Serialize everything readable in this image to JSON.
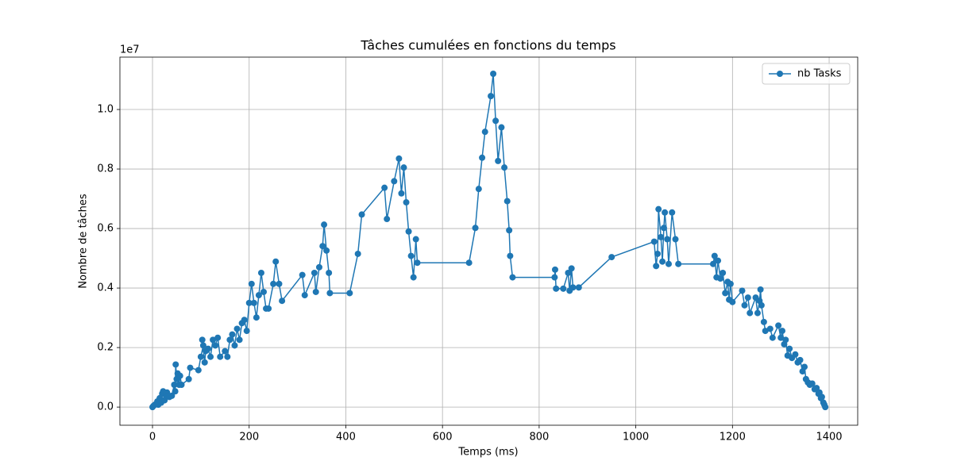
{
  "chart_data": {
    "type": "line",
    "title": "Tâches cumulées en fonctions du temps",
    "x_label": "Temps (ms)",
    "y_label": "Nombre de tâches",
    "y_offset_label": "1e7",
    "x": [
      0,
      2,
      5,
      8,
      10,
      12,
      15,
      18,
      20,
      22,
      25,
      28,
      30,
      33,
      35,
      40,
      45,
      47,
      48,
      50,
      52,
      55,
      57,
      60,
      75,
      78,
      95,
      100,
      105,
      103,
      108,
      110,
      115,
      120,
      125,
      130,
      135,
      140,
      150,
      155,
      160,
      165,
      170,
      175,
      180,
      185,
      190,
      195,
      200,
      205,
      210,
      215,
      220,
      225,
      230,
      235,
      240,
      250,
      255,
      262,
      268,
      310,
      315,
      335,
      338,
      345,
      352,
      355,
      360,
      365,
      367,
      408,
      425,
      433,
      480,
      485,
      500,
      510,
      515,
      520,
      525,
      530,
      535,
      540,
      545,
      548,
      655,
      668,
      675,
      682,
      688,
      700,
      705,
      710,
      715,
      722,
      728,
      734,
      738,
      740,
      745,
      832,
      833,
      835,
      850,
      860,
      863,
      867,
      870,
      882,
      950,
      1038,
      1042,
      1045,
      1047,
      1052,
      1055,
      1058,
      1060,
      1065,
      1068,
      1075,
      1082,
      1088,
      1160,
      1163,
      1167,
      1170,
      1175,
      1180,
      1185,
      1190,
      1193,
      1196,
      1200,
      1220,
      1225,
      1232,
      1236,
      1248,
      1252,
      1256,
      1258,
      1260,
      1265,
      1268,
      1278,
      1283,
      1295,
      1300,
      1303,
      1307,
      1310,
      1314,
      1318,
      1323,
      1330,
      1335,
      1340,
      1345,
      1349,
      1352,
      1356,
      1360,
      1365,
      1370,
      1374,
      1378,
      1380,
      1383,
      1385,
      1388,
      1390,
      1392
    ],
    "series": [
      {
        "name": "nb Tasks",
        "color": "#1f77b4",
        "values": [
          0,
          0.004,
          0.008,
          0.011,
          0.019,
          0.008,
          0.03,
          0.015,
          0.045,
          0.053,
          0.023,
          0.038,
          0.049,
          0.038,
          0.034,
          0.038,
          0.075,
          0.053,
          0.143,
          0.094,
          0.113,
          0.075,
          0.105,
          0.075,
          0.094,
          0.132,
          0.124,
          0.169,
          0.207,
          0.226,
          0.15,
          0.188,
          0.196,
          0.169,
          0.226,
          0.207,
          0.233,
          0.169,
          0.188,
          0.169,
          0.226,
          0.244,
          0.207,
          0.263,
          0.226,
          0.282,
          0.293,
          0.256,
          0.35,
          0.414,
          0.35,
          0.301,
          0.376,
          0.451,
          0.387,
          0.331,
          0.331,
          0.414,
          0.489,
          0.414,
          0.357,
          0.444,
          0.376,
          0.451,
          0.387,
          0.47,
          0.541,
          0.613,
          0.526,
          0.451,
          0.383,
          0.383,
          0.515,
          0.647,
          0.737,
          0.632,
          0.759,
          0.835,
          0.718,
          0.805,
          0.688,
          0.59,
          0.508,
          0.436,
          0.564,
          0.485,
          0.485,
          0.602,
          0.733,
          0.838,
          0.925,
          1.045,
          1.12,
          0.962,
          0.827,
          0.94,
          0.805,
          0.692,
          0.594,
          0.508,
          0.436,
          0.436,
          0.462,
          0.398,
          0.398,
          0.451,
          0.391,
          0.466,
          0.402,
          0.402,
          0.504,
          0.556,
          0.474,
          0.515,
          0.665,
          0.571,
          0.489,
          0.602,
          0.654,
          0.564,
          0.481,
          0.654,
          0.564,
          0.481,
          0.481,
          0.508,
          0.436,
          0.492,
          0.432,
          0.451,
          0.383,
          0.421,
          0.361,
          0.414,
          0.353,
          0.391,
          0.342,
          0.368,
          0.316,
          0.368,
          0.316,
          0.357,
          0.395,
          0.342,
          0.286,
          0.256,
          0.263,
          0.233,
          0.274,
          0.233,
          0.256,
          0.211,
          0.226,
          0.173,
          0.196,
          0.165,
          0.177,
          0.15,
          0.158,
          0.12,
          0.135,
          0.094,
          0.083,
          0.075,
          0.079,
          0.06,
          0.064,
          0.045,
          0.049,
          0.03,
          0.034,
          0.015,
          0.008,
          0
        ]
      }
    ],
    "xlim": [
      -67.4,
      1459.1
    ],
    "ylim": [
      -0.061,
      1.176
    ],
    "xticks": [
      0,
      200,
      400,
      600,
      800,
      1000,
      1200,
      1400
    ],
    "yticks": [
      {
        "value": 0,
        "label": "0.0"
      },
      {
        "value": 0.2,
        "label": "0.2"
      },
      {
        "value": 0.4,
        "label": "0.4"
      },
      {
        "value": 0.6,
        "label": "0.6"
      },
      {
        "value": 0.8,
        "label": "0.8"
      },
      {
        "value": 1,
        "label": "1.0"
      }
    ],
    "grid": true,
    "legend": "upper right"
  }
}
